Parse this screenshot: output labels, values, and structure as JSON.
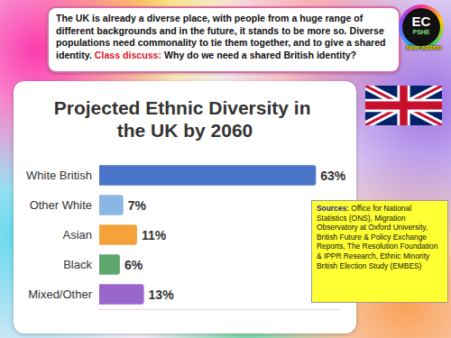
{
  "header": {
    "text": "The UK is already a diverse place, with people from a huge range of different backgrounds and in the future, it stands to be more so. Diverse populations need commonality to tie them together, and to give a shared identity.",
    "prompt_label": "Class discuss:",
    "prompt": "Why do we need a shared British identity?"
  },
  "logo": {
    "initials": "EC",
    "subject": "PSHE",
    "badge": "New edition"
  },
  "sources": {
    "label": "Sources:",
    "text": "Office for National Statistics (ONS), Migration Observatory at Oxford University, British Future & Policy Exchange Reports, The Resolution Foundation & IPPR Research, Ethnic Minority British Election Study (EMBES)"
  },
  "chart_data": {
    "type": "bar",
    "orientation": "horizontal",
    "title": "Projected Ethnic Diversity in the UK by 2060",
    "categories": [
      "White British",
      "Other White",
      "Asian",
      "Black",
      "Mixed/Other"
    ],
    "values": [
      63,
      7,
      11,
      6,
      13
    ],
    "value_labels": [
      "63%",
      "7%",
      "11%",
      "6%",
      "13%"
    ],
    "colors": [
      "#4a75c9",
      "#89b6e2",
      "#f6a23a",
      "#5ea86e",
      "#9966cc"
    ],
    "xlim": [
      0,
      70
    ],
    "data_labels": true,
    "tick_labels": "y",
    "grid": false
  }
}
